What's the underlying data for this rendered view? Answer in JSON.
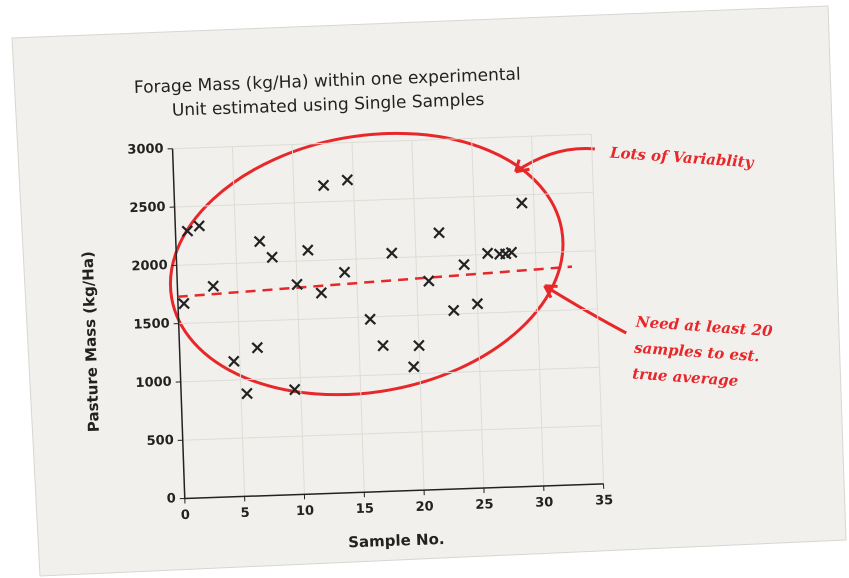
{
  "chart_data": {
    "type": "scatter",
    "title": [
      "Forage Mass (kg/Ha) within one experimental",
      "Unit estimated using Single  Samples"
    ],
    "x_label": "Sample No.",
    "y_label": "Pasture Mass (kg/Ha)",
    "x": [
      0.5,
      1,
      2,
      3,
      4.5,
      5.5,
      6.5,
      7,
      8,
      9.5,
      10,
      11,
      12,
      12.5,
      14,
      14.5,
      16,
      17,
      18,
      19.5,
      20,
      21,
      22,
      23,
      24,
      25,
      26,
      27,
      27.5,
      28,
      29
    ],
    "values": [
      1670,
      2290,
      2330,
      1810,
      1160,
      880,
      1270,
      2180,
      2040,
      900,
      1800,
      2090,
      1720,
      2640,
      1890,
      2680,
      1480,
      1250,
      2040,
      1060,
      1240,
      1790,
      2200,
      1530,
      1920,
      1580,
      2010,
      2000,
      2000,
      2010,
      2430
    ],
    "color": "#222222",
    "xlim": [
      0,
      35
    ],
    "xticks": [
      0,
      5,
      10,
      15,
      20,
      25,
      30,
      35
    ],
    "ylim": [
      0,
      3000
    ],
    "yticks": [
      0,
      500,
      1000,
      1500,
      2000,
      2500,
      3000
    ],
    "grid": true,
    "trend_line": {
      "x": [
        0,
        33
      ],
      "y": [
        1730,
        1870
      ],
      "color": "#e8272a"
    },
    "annotations": [
      {
        "lines": [
          "Lots of Variablity"
        ],
        "color": "#e8272a"
      },
      {
        "lines": [
          "Need at least 20",
          "samples to est.",
          "true average"
        ],
        "color": "#e8272a"
      }
    ]
  }
}
